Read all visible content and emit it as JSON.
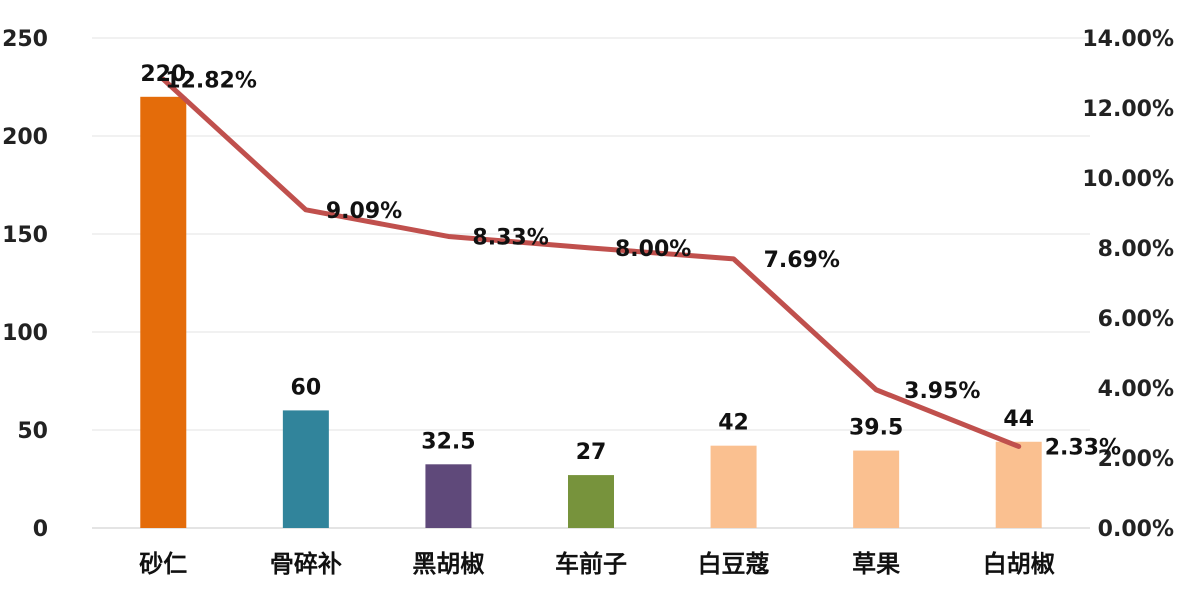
{
  "chart_data": {
    "type": "bar",
    "categories": [
      "砂仁",
      "骨碎补",
      "黑胡椒",
      "车前子",
      "白豆蔻",
      "草果",
      "白胡椒"
    ],
    "series": [
      {
        "type": "bar",
        "values": [
          220,
          60,
          32.5,
          27,
          42,
          39.5,
          44
        ],
        "value_labels": [
          "220",
          "60",
          "32.5",
          "27",
          "42",
          "39.5",
          "44"
        ],
        "colors": [
          "#E46C0A",
          "#31849B",
          "#5F497A",
          "#77933C",
          "#FAC090",
          "#FAC090",
          "#FAC090"
        ]
      },
      {
        "type": "line",
        "axis": "right",
        "values": [
          12.82,
          9.09,
          8.33,
          8.0,
          7.69,
          3.95,
          2.33
        ],
        "value_labels": [
          "12.82%",
          "9.09%",
          "8.33%",
          "8.00%",
          "7.69%",
          "3.95%",
          "2.33%"
        ],
        "color": "#C0504D"
      }
    ],
    "left_axis": {
      "ylim": [
        0,
        250
      ],
      "ticks": [
        "0",
        "50",
        "100",
        "150",
        "200",
        "250"
      ]
    },
    "right_axis": {
      "ylim": [
        0,
        14
      ],
      "ticks": [
        "0.00%",
        "2.00%",
        "4.00%",
        "6.00%",
        "8.00%",
        "10.00%",
        "12.00%",
        "14.00%"
      ]
    },
    "grid": true,
    "legend": "none"
  }
}
